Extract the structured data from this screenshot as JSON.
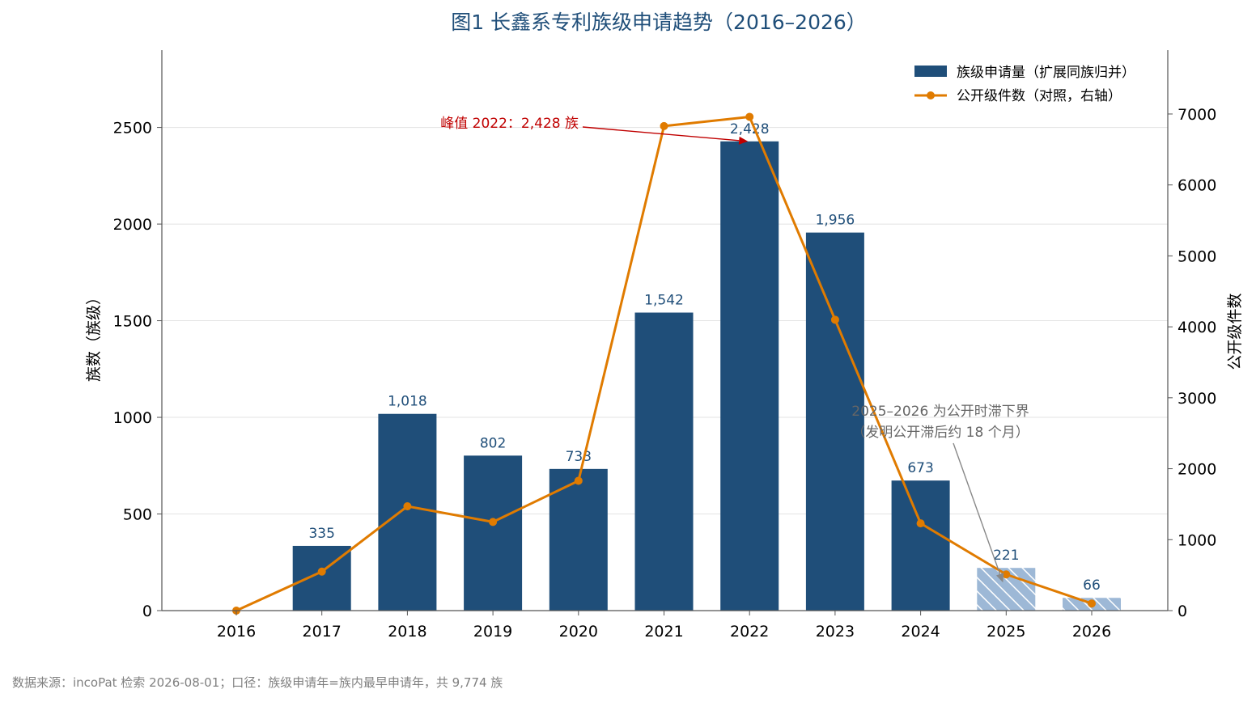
{
  "chart_data": {
    "type": "bar",
    "title": "图1  长鑫系专利族级申请趋势（2016–2026）",
    "categories": [
      "2016",
      "2017",
      "2018",
      "2019",
      "2020",
      "2021",
      "2022",
      "2023",
      "2024",
      "2025",
      "2026"
    ],
    "series": [
      {
        "name": "族级申请量（扩展同族归并）",
        "type": "bar",
        "axis": "left",
        "values": [
          0,
          335,
          1018,
          802,
          733,
          1542,
          2428,
          1956,
          673,
          221,
          66
        ],
        "labels": [
          "",
          "335",
          "1,018",
          "802",
          "733",
          "1,542",
          "2,428",
          "1,956",
          "673",
          "221",
          "66"
        ],
        "color": "#1f4e79",
        "hatched_categories": [
          "2025",
          "2026"
        ],
        "hatched_color": "#9db8d6"
      },
      {
        "name": "公开级件数（对照，右轴）",
        "type": "line",
        "axis": "right",
        "values": [
          0,
          550,
          1470,
          1250,
          1830,
          6830,
          6960,
          4100,
          1230,
          510,
          100
        ],
        "color": "#e07b00"
      }
    ],
    "ylabel": "族数（族级）",
    "ylabel_right": "公开级件数",
    "ylim": [
      0,
      2900
    ],
    "ylim_right": [
      0,
      7900
    ],
    "yticks": [
      0,
      500,
      1000,
      1500,
      2000,
      2500
    ],
    "yticks_right": [
      0,
      1000,
      2000,
      3000,
      4000,
      5000,
      6000,
      7000
    ],
    "grid": true,
    "legend_placement": "top-right",
    "annotations": [
      {
        "text": "峰值 2022：2,428 族",
        "target_category": "2022",
        "target_value": 2428,
        "color": "#c00000"
      },
      {
        "text_lines": [
          "2025–2026 为公开时滞下界",
          "（发明公开滞后约 18 个月）"
        ],
        "target_category": "2025",
        "target_value": 221,
        "color": "#666666"
      }
    ]
  },
  "footer": {
    "source": "数据来源：incoPat 检索 2026-08-01；口径：族级申请年=族内最早申请年，共 9,774 族"
  }
}
